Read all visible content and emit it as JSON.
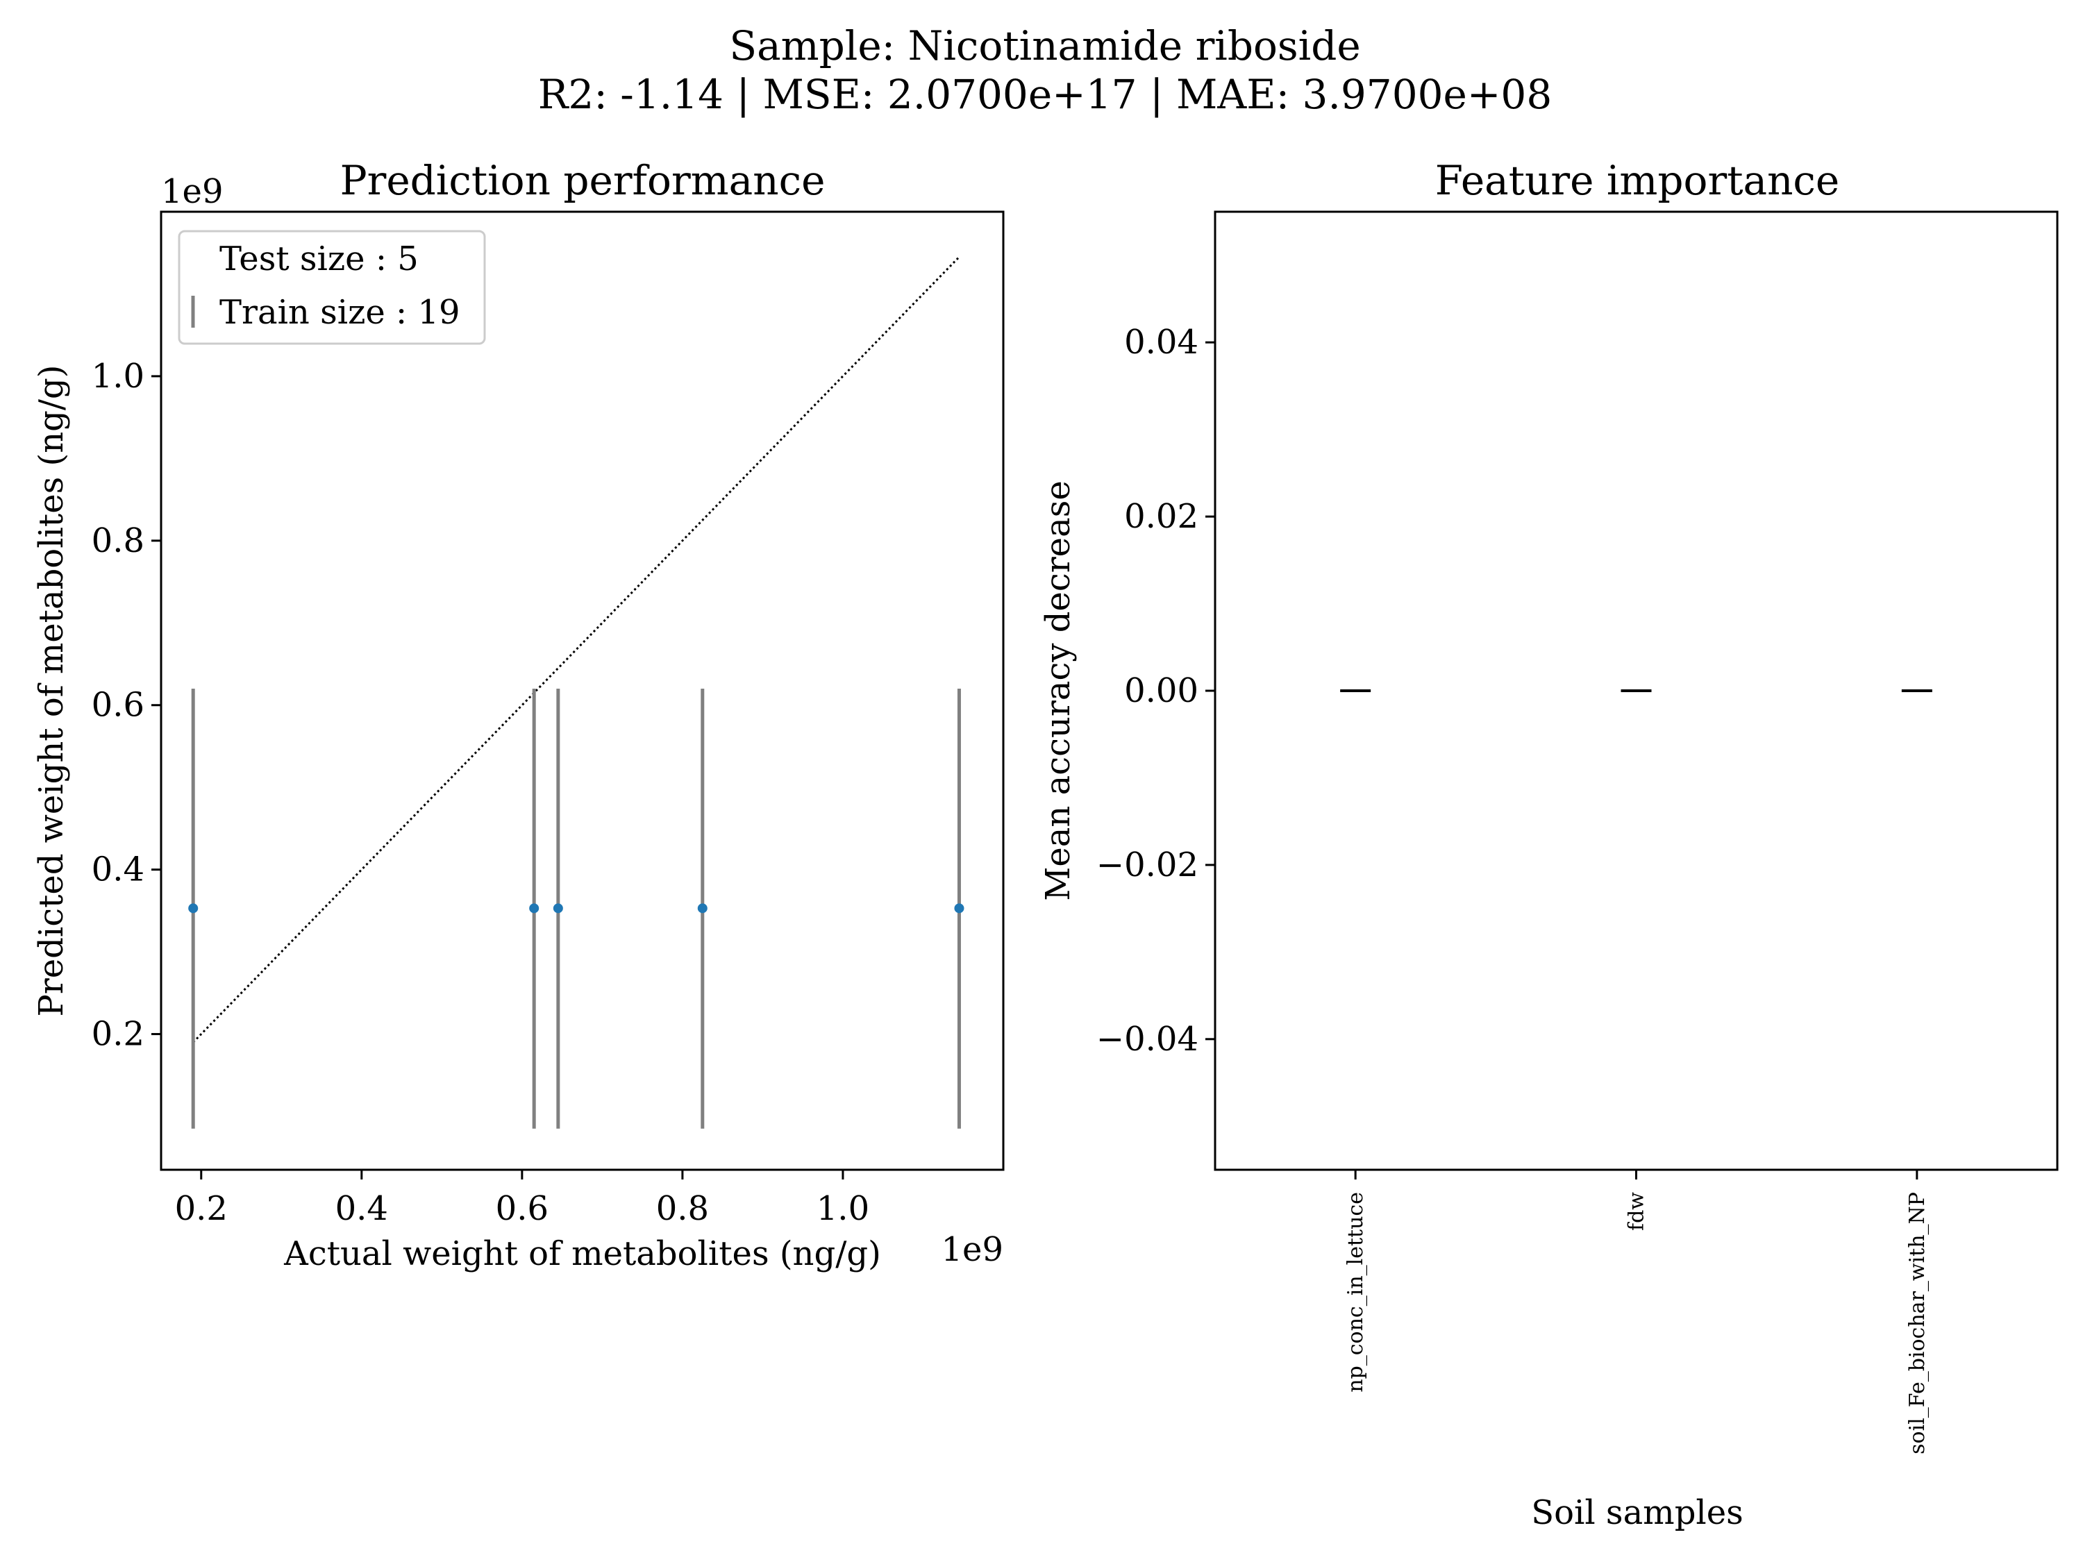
{
  "suptitle": {
    "line1": "Sample: Nicotinamide riboside",
    "line2": "R2: -1.14 | MSE: 2.0700e+17 | MAE: 3.9700e+08"
  },
  "chart_data": [
    {
      "type": "scatter",
      "title": "Prediction performance",
      "xlabel": "Actual weight of metabolites (ng/g)",
      "ylabel": "Predicted weight of metabolites (ng/g)",
      "x_offset_label": "1e9",
      "y_offset_label": "1e9",
      "xlim": [
        0.15,
        1.2
      ],
      "ylim": [
        0.035,
        1.2
      ],
      "x_ticks": [
        0.2,
        0.4,
        0.6,
        0.8,
        1.0
      ],
      "y_ticks": [
        0.2,
        0.4,
        0.6,
        0.8,
        1.0
      ],
      "tick_labels": [
        "0.2",
        "0.4",
        "0.6",
        "0.8",
        "1.0"
      ],
      "points": {
        "x": [
          0.19,
          0.615,
          0.645,
          0.825,
          1.145
        ],
        "y": [
          0.353,
          0.353,
          0.353,
          0.353,
          0.353
        ],
        "color": "#1f77b4"
      },
      "error_bars": {
        "low": [
          0.085,
          0.085,
          0.085,
          0.085,
          0.085
        ],
        "high": [
          0.62,
          0.62,
          0.62,
          0.62,
          0.62
        ],
        "color": "#808080"
      },
      "identity_line": {
        "from": [
          0.19,
          0.19
        ],
        "to": [
          1.145,
          1.145
        ]
      },
      "legend": {
        "placement": "upper-left",
        "entries": [
          "Test size : 5",
          "Train size : 19"
        ]
      },
      "grid": false
    },
    {
      "type": "scatter",
      "title": "Feature importance",
      "xlabel": "Soil samples",
      "ylabel": "Mean accuracy decrease",
      "categories": [
        "np_conc_in_lettuce",
        "fdw",
        "soil_Fe_biochar_with_NP"
      ],
      "values": [
        0.0,
        0.0,
        0.0
      ],
      "ylim": [
        -0.055,
        0.055
      ],
      "y_ticks": [
        0.04,
        0.02,
        0.0,
        -0.02,
        -0.04
      ],
      "tick_labels": [
        "0.04",
        "0.02",
        "0.00",
        "−0.02",
        "−0.04"
      ],
      "marker": "hline",
      "grid": false
    }
  ]
}
